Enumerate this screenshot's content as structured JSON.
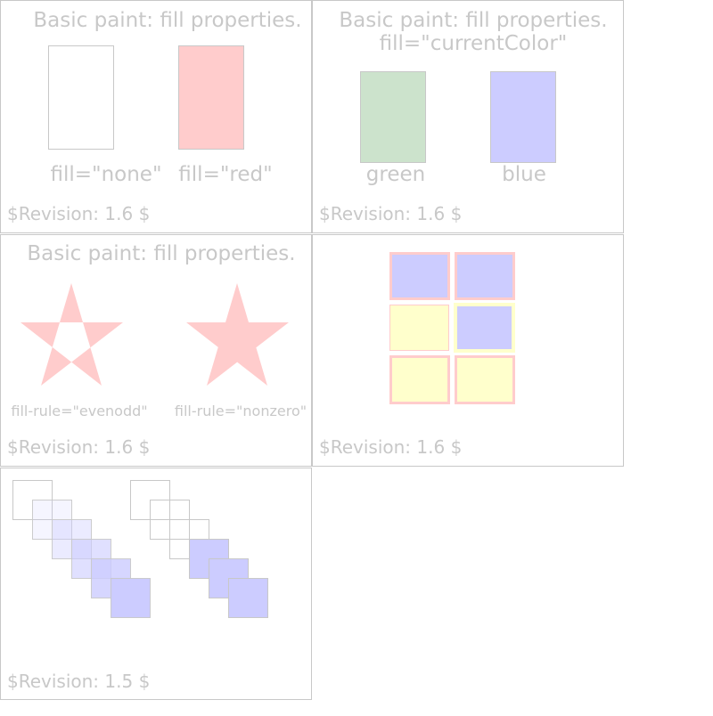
{
  "colors": {
    "frame": "#c8c8c8",
    "red": "#ffcccc",
    "green": "#cce3cc",
    "blue": "#ccccff",
    "yellow": "#ffffcc",
    "text": "#c8c8c8"
  },
  "panels": [
    {
      "title": "Basic paint: fill properties.",
      "labels": [
        "fill=\"none\"",
        "fill=\"red\""
      ],
      "revision": "$Revision: 1.6 $"
    },
    {
      "title": "Basic paint: fill properties.",
      "subtitle": "fill=\"currentColor\"",
      "labels": [
        "green",
        "blue"
      ],
      "revision": "$Revision: 1.6 $"
    },
    {
      "title": "Basic paint: fill properties.",
      "labels": [
        "fill-rule=\"evenodd\"",
        "fill-rule=\"nonzero\""
      ],
      "revision": "$Revision: 1.6 $"
    },
    {
      "revision": "$Revision: 1.6 $"
    },
    {
      "revision": "$Revision: 1.5 $",
      "left_fill_opacities": [
        0,
        0.2,
        0.4,
        0.6,
        0.8,
        1
      ],
      "right_filled": [
        false,
        false,
        false,
        true,
        true,
        true
      ]
    }
  ]
}
